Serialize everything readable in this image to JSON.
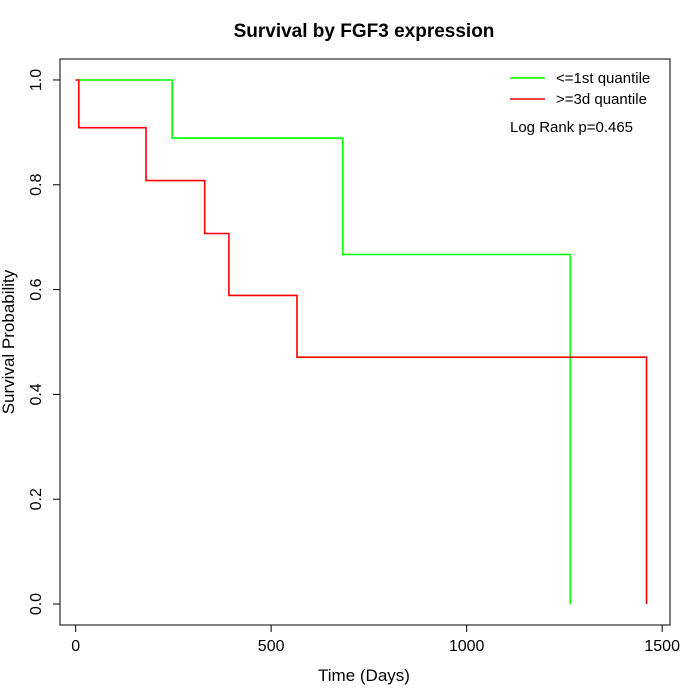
{
  "chart_data": {
    "type": "line",
    "title": "Survival by FGF3 expression",
    "xlabel": "Time (Days)",
    "ylabel": "Survival Probability",
    "xlim": [
      -40,
      1520
    ],
    "ylim": [
      -0.04,
      1.04
    ],
    "x_ticks": [
      0,
      500,
      1000,
      1500
    ],
    "x_tick_labels": [
      "0",
      "500",
      "1000",
      "1500"
    ],
    "y_ticks": [
      0.0,
      0.2,
      0.4,
      0.6,
      0.8,
      1.0
    ],
    "y_tick_labels": [
      "0.0",
      "0.2",
      "0.4",
      "0.6",
      "0.8",
      "1.0"
    ],
    "grid": false,
    "legend_position": "top-right",
    "annotation": "Log Rank p=0.465",
    "series": [
      {
        "name": "<=1st quantile",
        "color": "#00ff00",
        "x": [
          0,
          247,
          247,
          683,
          683,
          1265,
          1265
        ],
        "y": [
          1.0,
          1.0,
          0.889,
          0.889,
          0.667,
          0.667,
          0.0
        ]
      },
      {
        "name": ">=3d quantile",
        "color": "#ff0000",
        "x": [
          0,
          8,
          8,
          180,
          180,
          330,
          330,
          392,
          392,
          566,
          566,
          1460,
          1460
        ],
        "y": [
          1.0,
          1.0,
          0.909,
          0.909,
          0.808,
          0.808,
          0.707,
          0.707,
          0.589,
          0.589,
          0.471,
          0.471,
          0.0
        ]
      }
    ]
  }
}
